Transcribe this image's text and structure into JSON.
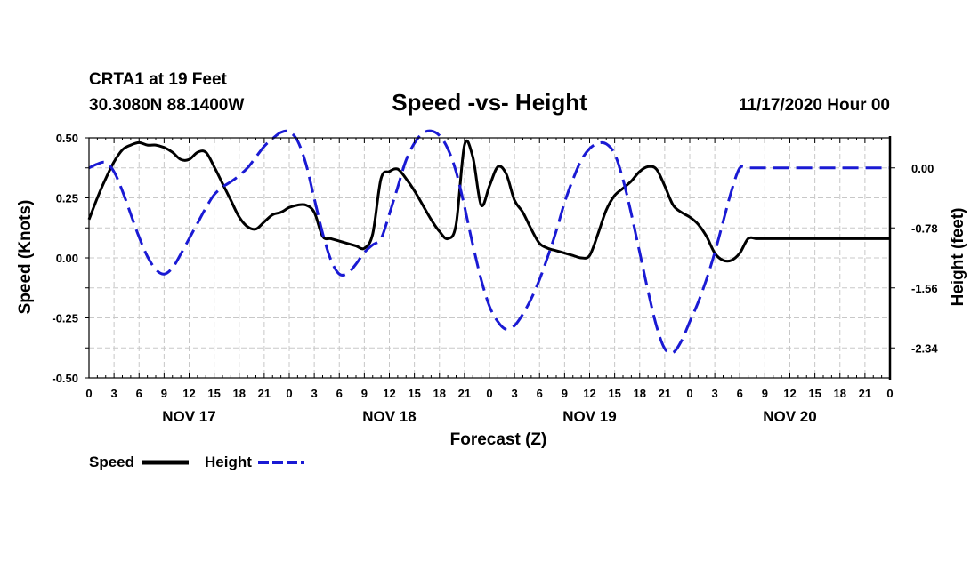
{
  "chart_data": {
    "type": "line",
    "title": "Speed -vs- Height",
    "station": "CRTA1 at 19 Feet",
    "location": "30.3080N 88.1400W",
    "issued": "11/17/2020 Hour 00",
    "xlabel": "Forecast (Z)",
    "ylabel_left": "Speed (Knots)",
    "ylabel_right": "Height (feet)",
    "x_range_hours": [
      0,
      96
    ],
    "ylim_left": [
      -0.5,
      0.5
    ],
    "ylim_right": [
      -2.73,
      0.39
    ],
    "grid": true,
    "legend_position": "bottom-left",
    "x_tick_labels": [
      "0",
      "3",
      "6",
      "9",
      "12",
      "15",
      "18",
      "21",
      "0",
      "3",
      "6",
      "9",
      "12",
      "15",
      "18",
      "21",
      "0",
      "3",
      "6",
      "9",
      "12",
      "15",
      "18",
      "21",
      "0",
      "3",
      "6",
      "9",
      "12",
      "15",
      "18",
      "21",
      "0"
    ],
    "day_labels": [
      {
        "label": "NOV 17",
        "hour": 12
      },
      {
        "label": "NOV 18",
        "hour": 36
      },
      {
        "label": "NOV 19",
        "hour": 60
      },
      {
        "label": "NOV 20",
        "hour": 84
      }
    ],
    "y_tick_labels_left": [
      "0.50",
      "0.25",
      "0.00",
      "-0.25",
      "-0.50"
    ],
    "y_ticks_left": [
      0.5,
      0.25,
      0.0,
      -0.25,
      -0.5
    ],
    "y_tick_labels_right": [
      "0.00",
      "-0.78",
      "-1.56",
      "-2.34"
    ],
    "y_ticks_right": [
      0.0,
      -0.78,
      -1.56,
      -2.34
    ],
    "series": [
      {
        "name": "Speed",
        "axis": "left",
        "color": "#000000",
        "dash": "solid",
        "x": [
          0,
          1,
          2,
          3,
          4,
          5,
          6,
          7,
          8,
          9,
          10,
          11,
          12,
          13,
          14,
          15,
          16,
          17,
          18,
          19,
          20,
          21,
          22,
          23,
          24,
          25,
          26,
          27,
          28,
          29,
          30,
          31,
          32,
          33,
          34,
          35,
          36,
          37,
          38,
          39,
          40,
          41,
          42,
          43,
          44,
          45,
          46,
          47,
          48,
          49,
          50,
          51,
          52,
          53,
          54,
          55,
          56,
          57,
          58,
          59,
          60,
          61,
          62,
          63,
          64,
          65,
          66,
          67,
          68,
          69,
          70,
          71,
          72,
          73,
          74,
          75,
          76,
          77,
          78,
          79,
          80,
          81,
          82,
          83,
          84,
          85,
          86,
          87,
          88,
          89,
          90,
          91,
          92,
          93,
          94,
          95,
          96
        ],
        "values": [
          0.16,
          0.25,
          0.33,
          0.4,
          0.45,
          0.47,
          0.48,
          0.47,
          0.47,
          0.46,
          0.44,
          0.41,
          0.41,
          0.44,
          0.44,
          0.38,
          0.31,
          0.24,
          0.17,
          0.13,
          0.12,
          0.15,
          0.18,
          0.19,
          0.21,
          0.22,
          0.22,
          0.19,
          0.09,
          0.08,
          0.07,
          0.06,
          0.05,
          0.04,
          0.1,
          0.33,
          0.36,
          0.37,
          0.33,
          0.28,
          0.22,
          0.16,
          0.11,
          0.08,
          0.14,
          0.47,
          0.42,
          0.22,
          0.3,
          0.38,
          0.35,
          0.24,
          0.19,
          0.12,
          0.06,
          0.04,
          0.03,
          0.02,
          0.01,
          0.0,
          0.01,
          0.1,
          0.2,
          0.26,
          0.29,
          0.32,
          0.36,
          0.38,
          0.37,
          0.3,
          0.22,
          0.19,
          0.17,
          0.14,
          0.09,
          0.02,
          -0.01,
          -0.01,
          0.02,
          0.08,
          0.08,
          0.08,
          0.08,
          0.08,
          0.08,
          0.08,
          0.08,
          0.08,
          0.08,
          0.08,
          0.08,
          0.08,
          0.08,
          0.08,
          0.08,
          0.08,
          0.08
        ]
      },
      {
        "name": "Height",
        "axis": "right",
        "color": "#1a1ad4",
        "dash": "dashed",
        "x": [
          0,
          1,
          2,
          3,
          4,
          5,
          6,
          7,
          8,
          9,
          10,
          11,
          12,
          13,
          14,
          15,
          16,
          17,
          18,
          19,
          20,
          21,
          22,
          23,
          24,
          25,
          26,
          27,
          28,
          29,
          30,
          31,
          32,
          33,
          34,
          35,
          36,
          37,
          38,
          39,
          40,
          41,
          42,
          43,
          44,
          45,
          46,
          47,
          48,
          49,
          50,
          51,
          52,
          53,
          54,
          55,
          56,
          57,
          58,
          59,
          60,
          61,
          62,
          63,
          64,
          65,
          66,
          67,
          68,
          69,
          70,
          71,
          72,
          73,
          74,
          75,
          76,
          77,
          78,
          79,
          80,
          81,
          82,
          83,
          84,
          85,
          86,
          87,
          88,
          89,
          90,
          91,
          92,
          93,
          94,
          95,
          96
        ],
        "values": [
          0.0,
          0.05,
          0.07,
          -0.05,
          -0.3,
          -0.6,
          -0.9,
          -1.15,
          -1.32,
          -1.38,
          -1.3,
          -1.12,
          -0.92,
          -0.72,
          -0.52,
          -0.35,
          -0.25,
          -0.18,
          -0.1,
          0.0,
          0.14,
          0.28,
          0.38,
          0.46,
          0.47,
          0.35,
          0.05,
          -0.4,
          -0.85,
          -1.2,
          -1.38,
          -1.37,
          -1.25,
          -1.1,
          -1.0,
          -0.92,
          -0.6,
          -0.25,
          0.1,
          0.32,
          0.45,
          0.48,
          0.42,
          0.25,
          -0.05,
          -0.5,
          -1.0,
          -1.45,
          -1.8,
          -2.0,
          -2.1,
          -2.05,
          -1.9,
          -1.7,
          -1.45,
          -1.15,
          -0.82,
          -0.45,
          -0.15,
          0.1,
          0.25,
          0.32,
          0.31,
          0.18,
          -0.15,
          -0.6,
          -1.1,
          -1.6,
          -2.05,
          -2.35,
          -2.4,
          -2.25,
          -2.0,
          -1.75,
          -1.45,
          -1.1,
          -0.7,
          -0.3,
          0.0,
          0.0,
          0.0,
          0.0,
          0.0,
          0.0,
          0.0,
          0.0,
          0.0,
          0.0,
          0.0,
          0.0,
          0.0,
          0.0,
          0.0,
          0.0,
          0.0,
          0.0,
          0.0
        ]
      }
    ]
  }
}
